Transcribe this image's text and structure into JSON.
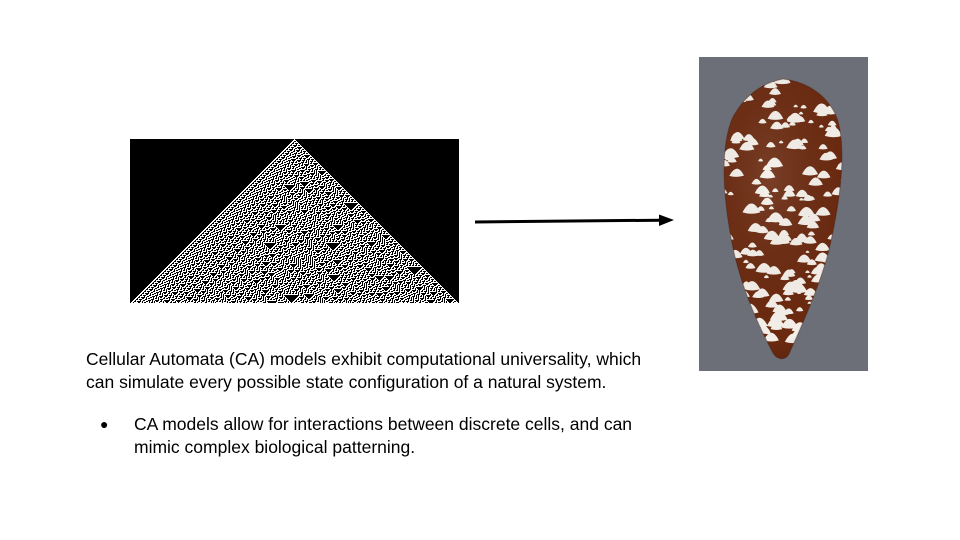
{
  "slide": {
    "paragraph": "Cellular Automata (CA) models exhibit computational universality, which can simulate every possible state configuration of a natural system.",
    "bullets": [
      {
        "text": "CA models allow for interactions between discrete cells, and can mimic complex biological patterning."
      }
    ]
  },
  "colors": {
    "ca_background": "#000000",
    "ca_cells": "#ffffff",
    "arrow": "#000000",
    "photo_background": "#6d6f78",
    "shell_brown": "#6b2a10",
    "shell_white": "#f4efe8"
  },
  "images": {
    "ca_pattern": "cellular-automaton-triangle",
    "shell": "cone-snail-shell"
  }
}
